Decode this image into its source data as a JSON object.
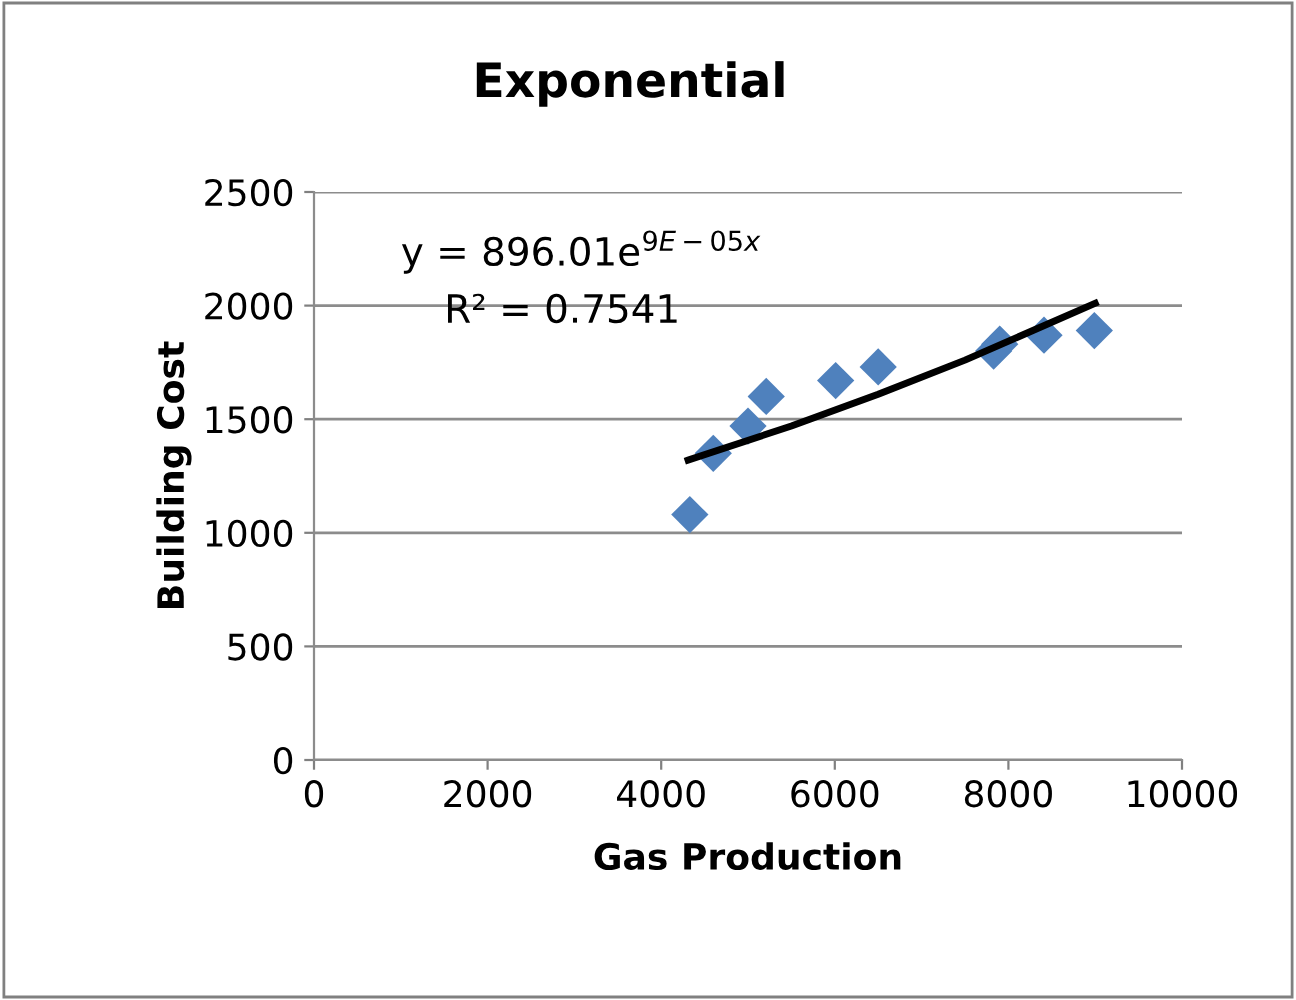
{
  "chart_data": {
    "type": "scatter",
    "title": "Exponential",
    "xlabel": "Gas Production",
    "ylabel": "Building Cost",
    "xlim": [
      0,
      10000
    ],
    "xticks": [
      0,
      2000,
      4000,
      6000,
      8000,
      10000
    ],
    "ylim": [
      0,
      2500
    ],
    "yticks": [
      0,
      500,
      1000,
      1500,
      2000,
      2500
    ],
    "grid": "y",
    "legend": false,
    "marker": "diamond",
    "annotations": [
      "y = 896.01e$^{9E−05x}$",
      "R² = 0.7541"
    ],
    "series": [
      {
        "color": "#4f81bd",
        "x": [
          4330,
          4600,
          5000,
          5210,
          6010,
          6500,
          7830,
          7900,
          8410,
          8990
        ],
        "values": [
          1080,
          1350,
          1470,
          1600,
          1670,
          1730,
          1800,
          1830,
          1870,
          1890
        ]
      },
      {
        "type": "line",
        "color": "#000000",
        "line_style": "solid",
        "marker": "none",
        "x": [
          4310,
          5500,
          6500,
          7500,
          9000
        ],
        "values": [
          1320,
          1470,
          1610,
          1760,
          2010
        ]
      }
    ]
  }
}
